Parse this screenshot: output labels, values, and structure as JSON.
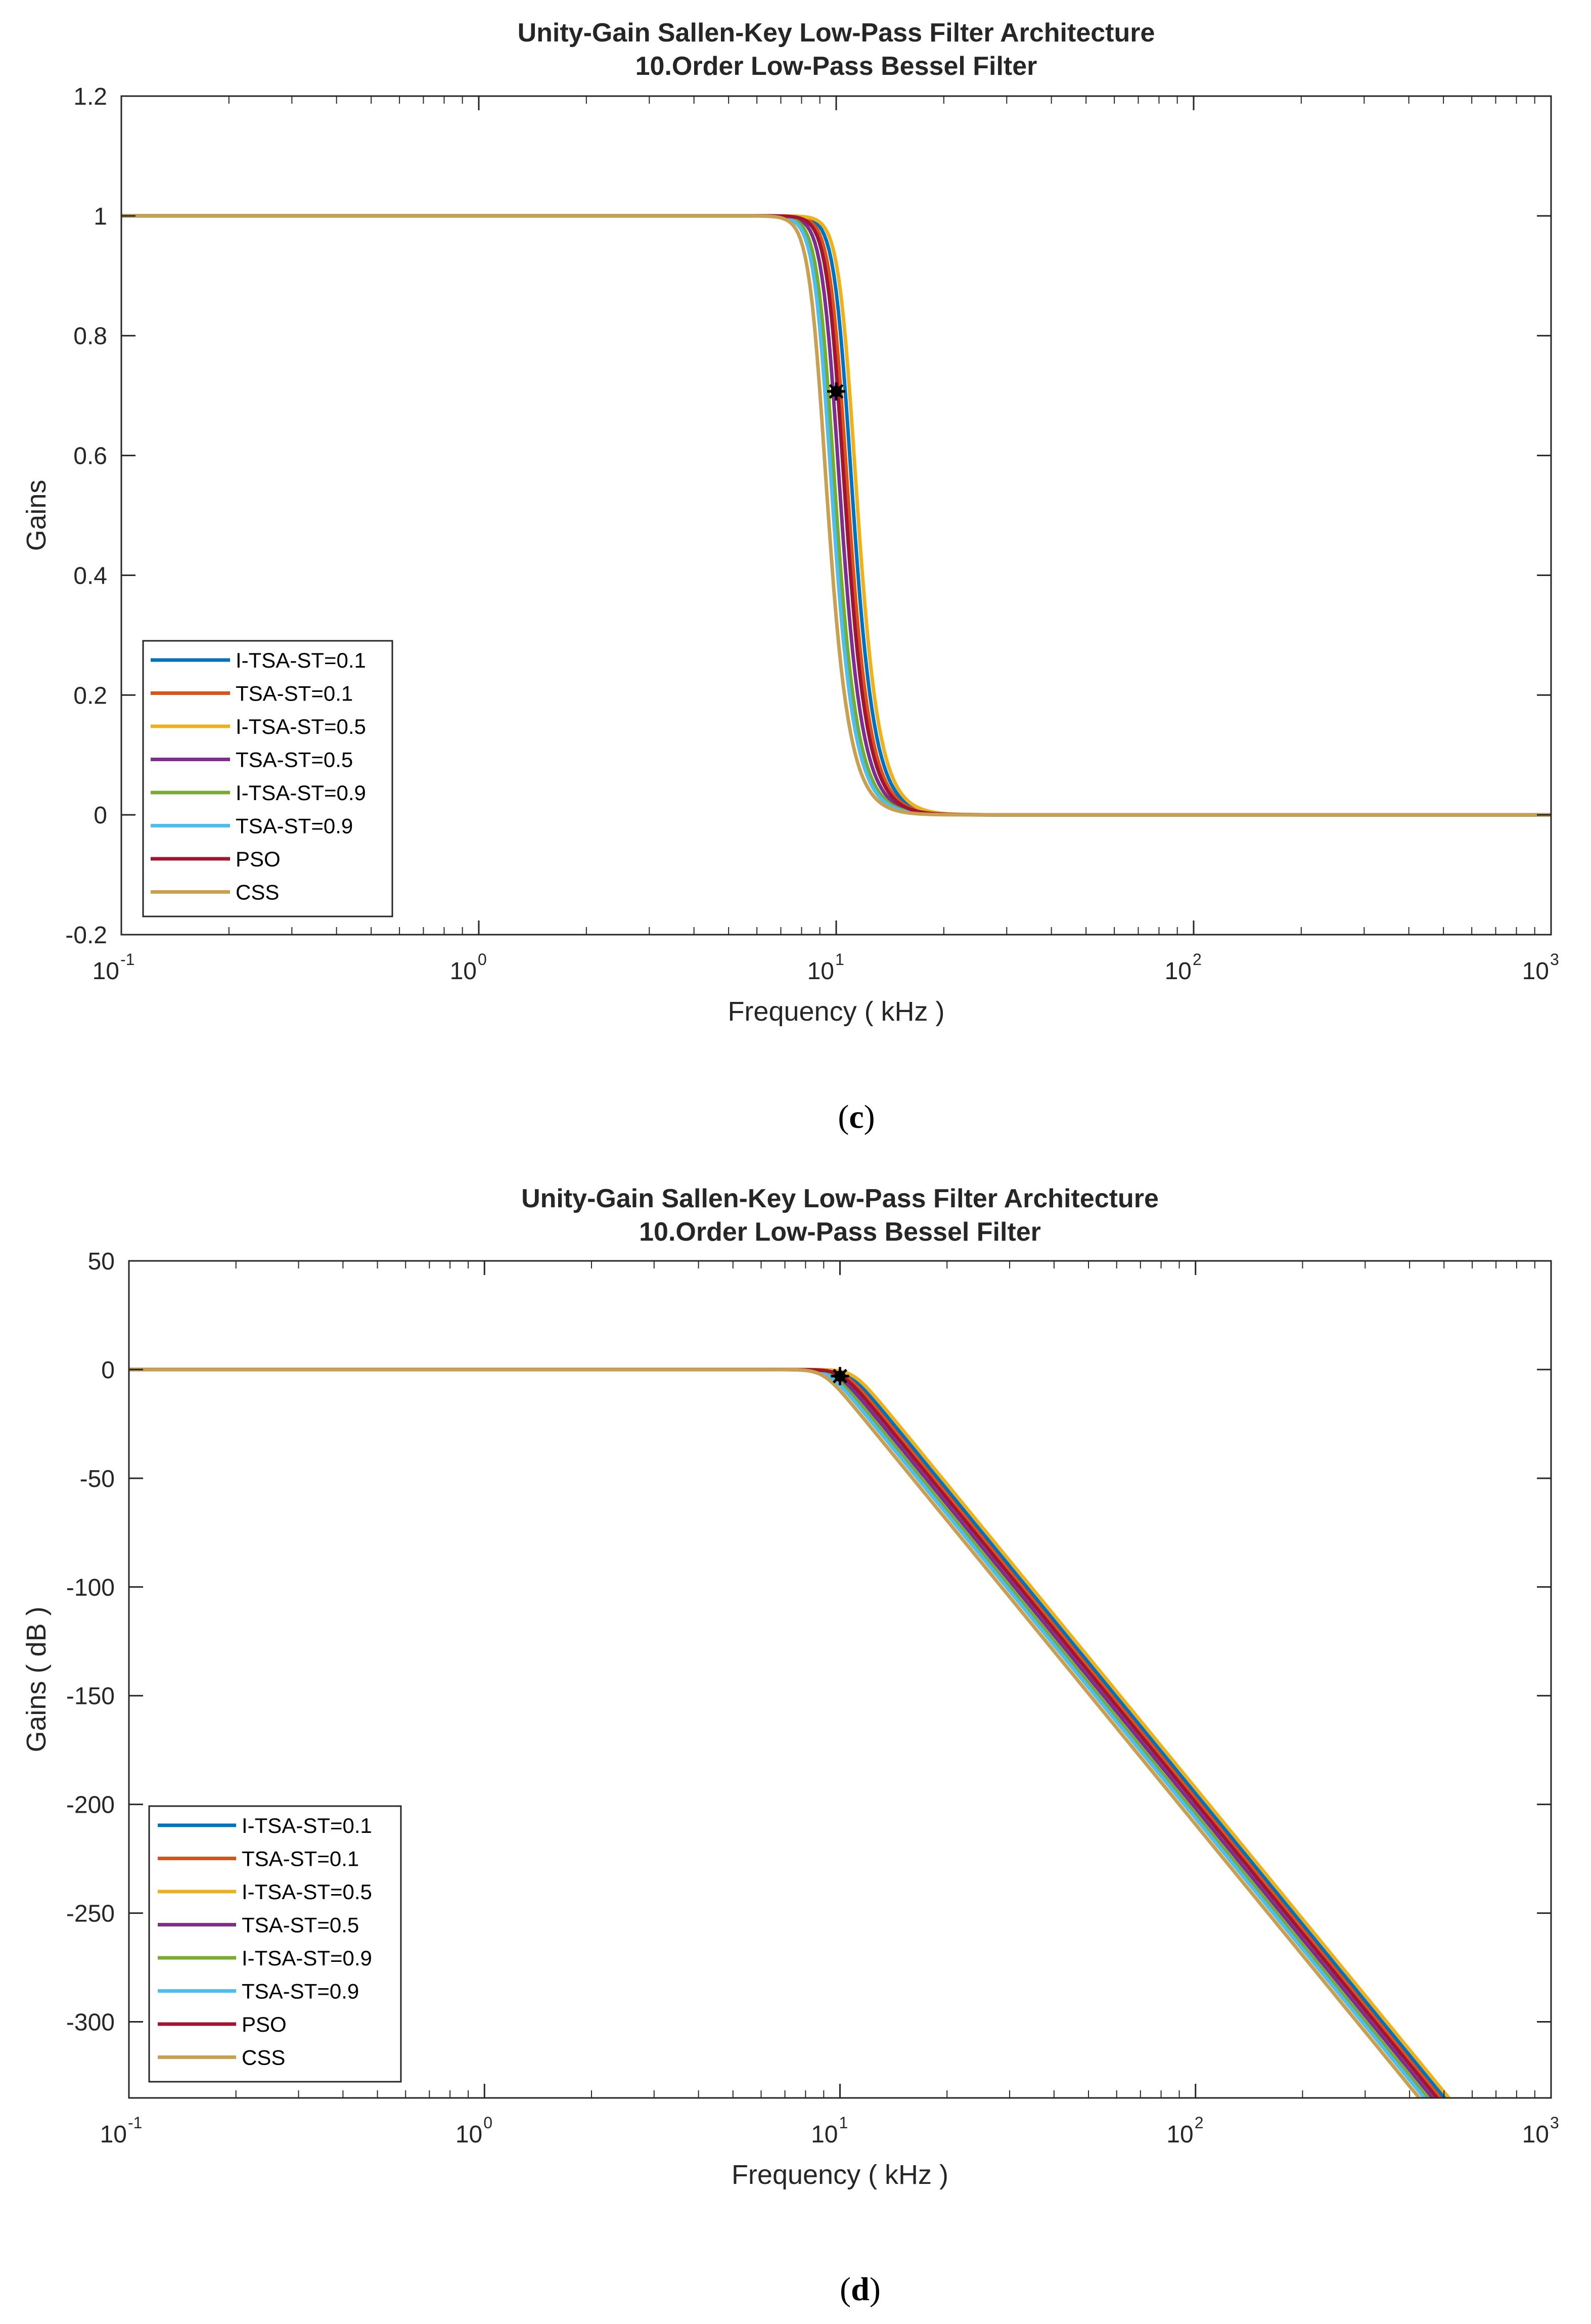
{
  "chart_data": [
    {
      "type": "line",
      "title": "Unity-Gain Sallen-Key Low-Pass Filter Architecture",
      "subtitle": "10.Order Low-Pass Bessel Filter",
      "xlabel": "Frequency ( kHz )",
      "ylabel": "Gains",
      "xscale": "log",
      "xlim": [
        0.1,
        1000
      ],
      "ylim": [
        -0.2,
        1.2
      ],
      "x_ticks": [
        {
          "base": "10",
          "exp": "-1"
        },
        {
          "base": "10",
          "exp": "0"
        },
        {
          "base": "10",
          "exp": "1"
        },
        {
          "base": "10",
          "exp": "2"
        },
        {
          "base": "10",
          "exp": "3"
        }
      ],
      "y_tick_values": [
        -0.2,
        0,
        0.2,
        0.4,
        0.6,
        0.8,
        1,
        1.2
      ],
      "y_tick_labels": [
        "-0.2",
        "0",
        "0.2",
        "0.4",
        "0.6",
        "0.8",
        "1",
        "1.2"
      ],
      "grid": false,
      "legend_position": "bottom-left",
      "caption_open": "(",
      "caption_letter": "c",
      "caption_close": ")",
      "series": [
        {
          "name": "I-TSA-ST=0.1",
          "color": "#0072BD",
          "cutoff_khz": 10.6
        },
        {
          "name": "TSA-ST=0.1",
          "color": "#D95319",
          "cutoff_khz": 10.3
        },
        {
          "name": "I-TSA-ST=0.5",
          "color": "#EDB120",
          "cutoff_khz": 10.9
        },
        {
          "name": "TSA-ST=0.5",
          "color": "#7E2F8E",
          "cutoff_khz": 9.8
        },
        {
          "name": "I-TSA-ST=0.9",
          "color": "#77AC30",
          "cutoff_khz": 9.5
        },
        {
          "name": "TSA-ST=0.9",
          "color": "#4DBEEE",
          "cutoff_khz": 9.3
        },
        {
          "name": "PSO",
          "color": "#A2142F",
          "cutoff_khz": 10.1
        },
        {
          "name": "CSS",
          "color": "#C8A050",
          "cutoff_khz": 9.0
        }
      ],
      "marker": {
        "x": 10,
        "y": 0.707,
        "color": "#000000"
      }
    },
    {
      "type": "line",
      "title": "Unity-Gain Sallen-Key Low-Pass Filter Architecture",
      "subtitle": "10.Order Low-Pass Bessel Filter",
      "xlabel": "Frequency ( kHz )",
      "ylabel": "Gains ( dB )",
      "xscale": "log",
      "xlim": [
        0.1,
        1000
      ],
      "ylim": [
        -335,
        50
      ],
      "x_ticks": [
        {
          "base": "10",
          "exp": "-1"
        },
        {
          "base": "10",
          "exp": "0"
        },
        {
          "base": "10",
          "exp": "1"
        },
        {
          "base": "10",
          "exp": "2"
        },
        {
          "base": "10",
          "exp": "3"
        }
      ],
      "y_tick_values": [
        -300,
        -250,
        -200,
        -150,
        -100,
        -50,
        0,
        50
      ],
      "y_tick_labels": [
        "-300",
        "-250",
        "-200",
        "-150",
        "-100",
        "-50",
        "0",
        "50"
      ],
      "grid": false,
      "legend_position": "bottom-left",
      "caption_open": "(",
      "caption_letter": "d",
      "caption_close": ")",
      "series": [
        {
          "name": "I-TSA-ST=0.1",
          "color": "#0072BD",
          "cutoff_khz": 10.6
        },
        {
          "name": "TSA-ST=0.1",
          "color": "#D95319",
          "cutoff_khz": 10.3
        },
        {
          "name": "I-TSA-ST=0.5",
          "color": "#EDB120",
          "cutoff_khz": 10.9
        },
        {
          "name": "TSA-ST=0.5",
          "color": "#7E2F8E",
          "cutoff_khz": 9.8
        },
        {
          "name": "I-TSA-ST=0.9",
          "color": "#77AC30",
          "cutoff_khz": 9.5
        },
        {
          "name": "TSA-ST=0.9",
          "color": "#4DBEEE",
          "cutoff_khz": 9.3
        },
        {
          "name": "PSO",
          "color": "#A2142F",
          "cutoff_khz": 10.1
        },
        {
          "name": "CSS",
          "color": "#C8A050",
          "cutoff_khz": 9.0
        }
      ],
      "marker": {
        "x": 10,
        "y": -3,
        "color": "#000000"
      }
    }
  ]
}
